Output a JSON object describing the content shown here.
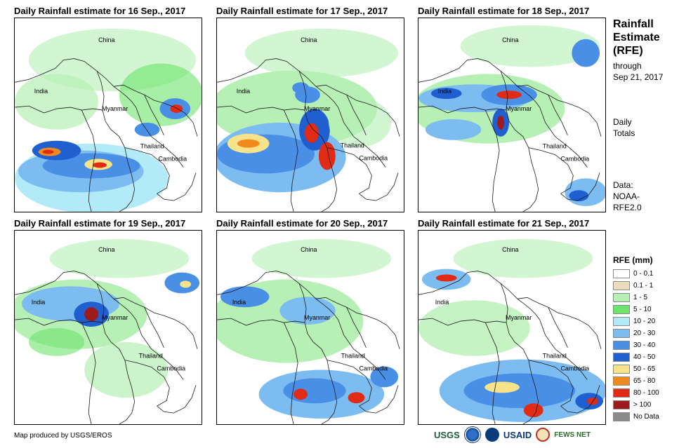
{
  "panels": [
    {
      "title": "Daily Rainfall estimate for 16 Sep., 2017"
    },
    {
      "title": "Daily Rainfall estimate for 17 Sep., 2017"
    },
    {
      "title": "Daily Rainfall estimate for 18 Sep., 2017"
    },
    {
      "title": "Daily Rainfall estimate for 19 Sep., 2017"
    },
    {
      "title": "Daily Rainfall estimate for 20 Sep., 2017"
    },
    {
      "title": "Daily Rainfall estimate for 21 Sep., 2017"
    }
  ],
  "map_labels": {
    "china": "China",
    "india": "India",
    "myanmar": "Myanmar",
    "thailand": "Thailand",
    "cambodia": "Cambodia"
  },
  "sidebar": {
    "title_line1": "Rainfall",
    "title_line2": "Estimate",
    "title_line3": "(RFE)",
    "through_line1": "through",
    "through_line2": "Sep 21, 2017",
    "daily_line1": "Daily",
    "daily_line2": "Totals",
    "data_line1": "Data:",
    "data_line2": "NOAA-",
    "data_line3": "RFE2.0"
  },
  "legend": {
    "title": "RFE (mm)",
    "items": [
      {
        "label": "0 - 0.1",
        "color": "#ffffff"
      },
      {
        "label": "0.1 - 1",
        "color": "#ecdcbe"
      },
      {
        "label": "1 - 5",
        "color": "#b6f0b4"
      },
      {
        "label": "5 - 10",
        "color": "#6ce36a"
      },
      {
        "label": "10 - 20",
        "color": "#b3eaf7"
      },
      {
        "label": "20 - 30",
        "color": "#7cbcf1"
      },
      {
        "label": "30 - 40",
        "color": "#4a8fe6"
      },
      {
        "label": "40 - 50",
        "color": "#1f5fd0"
      },
      {
        "label": "50 - 65",
        "color": "#f6e38a"
      },
      {
        "label": "65 - 80",
        "color": "#f08a1c"
      },
      {
        "label": "80 - 100",
        "color": "#e22b14"
      },
      {
        "label": "> 100",
        "color": "#9e1b1b"
      },
      {
        "label": "No Data",
        "color": "#8c8c8c"
      }
    ]
  },
  "footer": {
    "credit": "Map produced by USGS/EROS"
  },
  "logos": {
    "usgs": "USGS",
    "usaid": "USAID",
    "fews": "FEWS NET"
  }
}
